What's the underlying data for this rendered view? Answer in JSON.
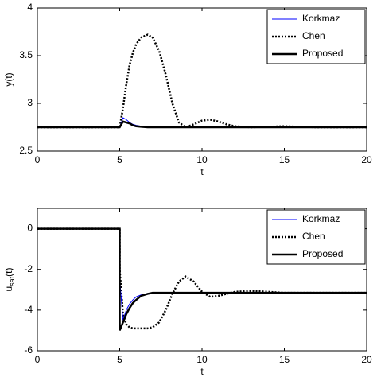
{
  "chart_data": [
    {
      "type": "line",
      "xlabel": "t",
      "ylabel": [
        "y(t)"
      ],
      "x": [
        0,
        5,
        5.2,
        5.4,
        5.6,
        5.8,
        6,
        6.3,
        6.7,
        7,
        7.4,
        7.8,
        8.2,
        8.6,
        9,
        9.5,
        10,
        10.5,
        11,
        11.5,
        12,
        13,
        14,
        15,
        16,
        17,
        20
      ],
      "xlim": [
        0,
        20
      ],
      "xticks": [
        0,
        5,
        10,
        15,
        20
      ],
      "ylim": [
        2.5,
        4
      ],
      "yticks": [
        2.5,
        3,
        3.5,
        4
      ],
      "legend": "upper right",
      "series": [
        {
          "name": "Korkmaz",
          "color": "#0000ff",
          "linestyle": "solid",
          "width": 1,
          "values": [
            2.75,
            2.75,
            2.85,
            2.83,
            2.8,
            2.78,
            2.77,
            2.76,
            2.755,
            2.75,
            2.75,
            2.75,
            2.75,
            2.75,
            2.75,
            2.75,
            2.75,
            2.75,
            2.75,
            2.75,
            2.75,
            2.75,
            2.75,
            2.75,
            2.75,
            2.75,
            2.75
          ]
        },
        {
          "name": "Chen",
          "color": "#000000",
          "linestyle": "dotted",
          "width": 2.5,
          "values": [
            2.75,
            2.75,
            2.95,
            3.2,
            3.4,
            3.53,
            3.62,
            3.69,
            3.72,
            3.69,
            3.55,
            3.3,
            3.0,
            2.8,
            2.75,
            2.78,
            2.82,
            2.83,
            2.81,
            2.78,
            2.76,
            2.75,
            2.755,
            2.76,
            2.755,
            2.75,
            2.75
          ]
        },
        {
          "name": "Proposed",
          "color": "#000000",
          "linestyle": "solid",
          "width": 2.5,
          "values": [
            2.75,
            2.75,
            2.81,
            2.8,
            2.79,
            2.77,
            2.76,
            2.755,
            2.75,
            2.75,
            2.75,
            2.75,
            2.75,
            2.75,
            2.75,
            2.75,
            2.75,
            2.75,
            2.75,
            2.75,
            2.75,
            2.75,
            2.75,
            2.75,
            2.75,
            2.75,
            2.75
          ]
        }
      ]
    },
    {
      "type": "line",
      "xlabel": "t",
      "ylabel": [
        "u",
        "sat",
        "(t)"
      ],
      "x": [
        0,
        5,
        5,
        5.2,
        5.4,
        5.6,
        5.8,
        6,
        6.3,
        6.7,
        7,
        7.4,
        7.8,
        8.2,
        8.6,
        9,
        9.5,
        10,
        10.5,
        11,
        11.5,
        12,
        13,
        14,
        15,
        16,
        20
      ],
      "xlim": [
        0,
        20
      ],
      "xticks": [
        0,
        5,
        10,
        15,
        20
      ],
      "ylim": [
        -6,
        1
      ],
      "yticks": [
        -6,
        -4,
        -2,
        0
      ],
      "legend": "upper right",
      "series": [
        {
          "name": "Korkmaz",
          "color": "#0000ff",
          "linestyle": "solid",
          "width": 1,
          "values": [
            0,
            0,
            -2.5,
            -4.5,
            -4.0,
            -3.7,
            -3.5,
            -3.35,
            -3.25,
            -3.18,
            -3.15,
            -3.15,
            -3.15,
            -3.15,
            -3.15,
            -3.15,
            -3.15,
            -3.15,
            -3.15,
            -3.15,
            -3.15,
            -3.15,
            -3.15,
            -3.15,
            -3.15,
            -3.15,
            -3.15
          ]
        },
        {
          "name": "Chen",
          "color": "#000000",
          "linestyle": "dotted",
          "width": 2.5,
          "values": [
            0,
            0,
            -2,
            -4.2,
            -4.7,
            -4.85,
            -4.9,
            -4.9,
            -4.9,
            -4.9,
            -4.85,
            -4.6,
            -4.0,
            -3.2,
            -2.6,
            -2.35,
            -2.6,
            -3.1,
            -3.35,
            -3.3,
            -3.2,
            -3.1,
            -3.05,
            -3.1,
            -3.15,
            -3.15,
            -3.15
          ]
        },
        {
          "name": "Proposed",
          "color": "#000000",
          "linestyle": "solid",
          "width": 2.5,
          "values": [
            0,
            0,
            -5,
            -4.6,
            -4.2,
            -3.9,
            -3.65,
            -3.5,
            -3.3,
            -3.2,
            -3.15,
            -3.15,
            -3.15,
            -3.15,
            -3.15,
            -3.15,
            -3.15,
            -3.15,
            -3.15,
            -3.15,
            -3.15,
            -3.15,
            -3.15,
            -3.15,
            -3.15,
            -3.15,
            -3.15
          ]
        }
      ]
    }
  ]
}
